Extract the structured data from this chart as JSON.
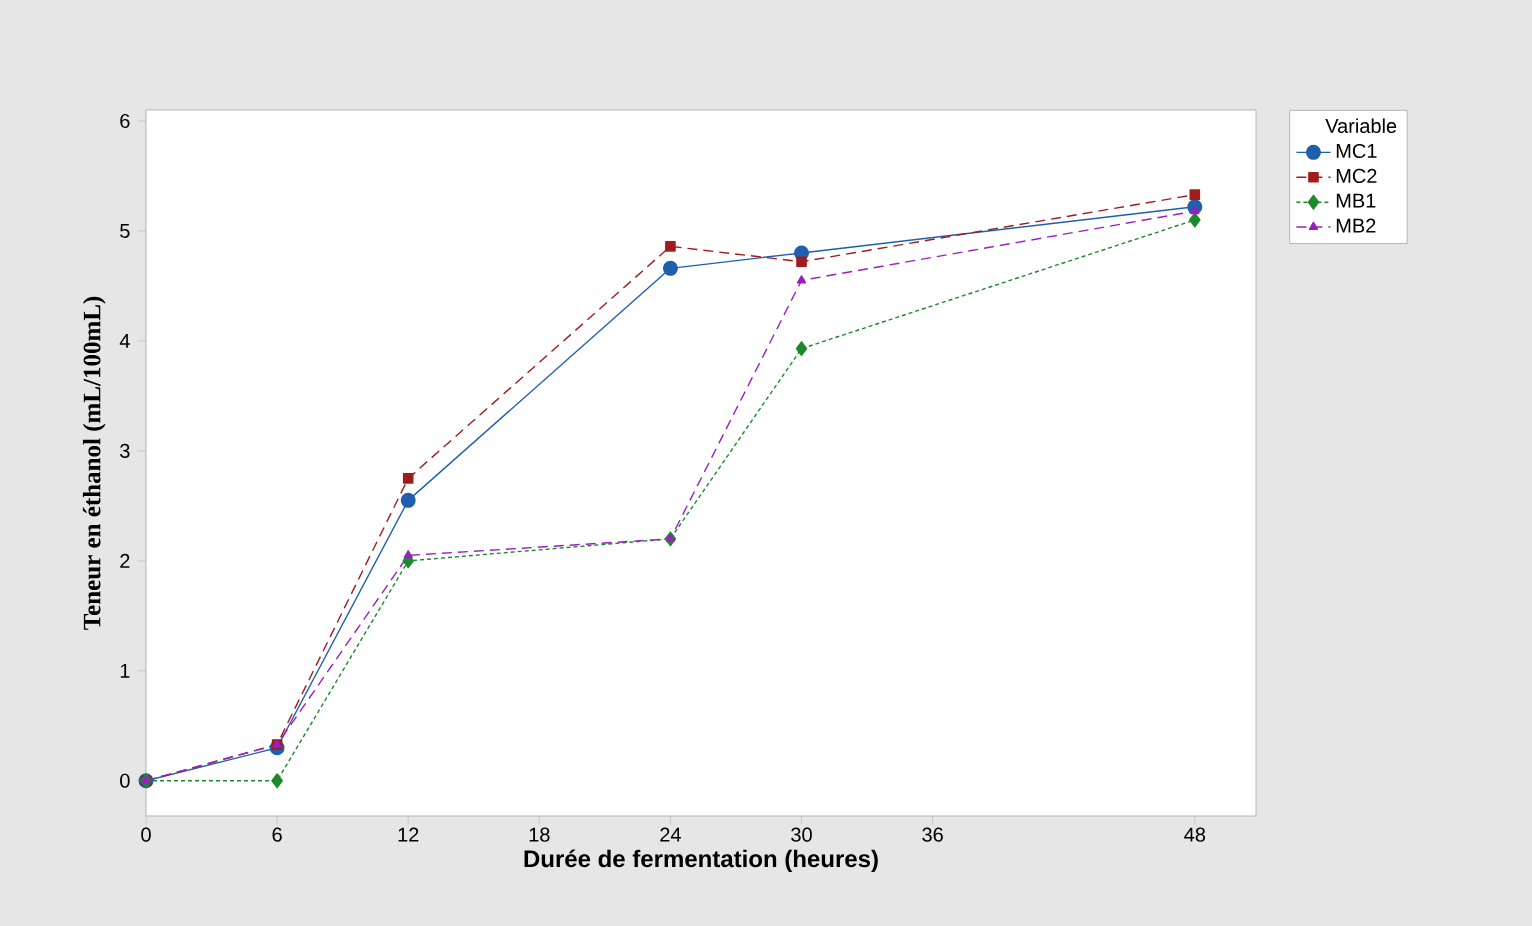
{
  "chart_data": {
    "type": "line",
    "xlabel": "Durée de fermentation (heures)",
    "ylabel": "Teneur en éthanol (mL/100mL)",
    "legend_title": "Variable",
    "x": [
      0,
      6,
      12,
      24,
      30,
      48
    ],
    "series": [
      {
        "name": "MC1",
        "color": "#1f5fad",
        "marker": "circle",
        "line_style": "solid",
        "values": [
          0,
          0.3,
          2.55,
          4.66,
          4.8,
          5.22
        ]
      },
      {
        "name": "MC2",
        "color": "#a01c1c",
        "marker": "square",
        "line_style": "dashed",
        "values": [
          0,
          0.33,
          2.75,
          4.86,
          4.72,
          5.33
        ]
      },
      {
        "name": "MB1",
        "color": "#1a8a2a",
        "marker": "diamond",
        "line_style": "dotted",
        "values": [
          0,
          0,
          2.0,
          2.2,
          3.93,
          5.1
        ]
      },
      {
        "name": "MB2",
        "color": "#9b1fbf",
        "marker": "triangle",
        "line_style": "dashed",
        "values": [
          0,
          0.33,
          2.05,
          2.2,
          4.55,
          5.18
        ]
      }
    ],
    "xlim": [
      0,
      50.8
    ],
    "ylim": [
      -0.32,
      6.1
    ],
    "xticks": [
      0,
      6,
      12,
      18,
      24,
      30,
      36,
      48
    ],
    "yticks": [
      0,
      1,
      2,
      3,
      4,
      5,
      6
    ],
    "grid": false,
    "legend": "top right"
  }
}
